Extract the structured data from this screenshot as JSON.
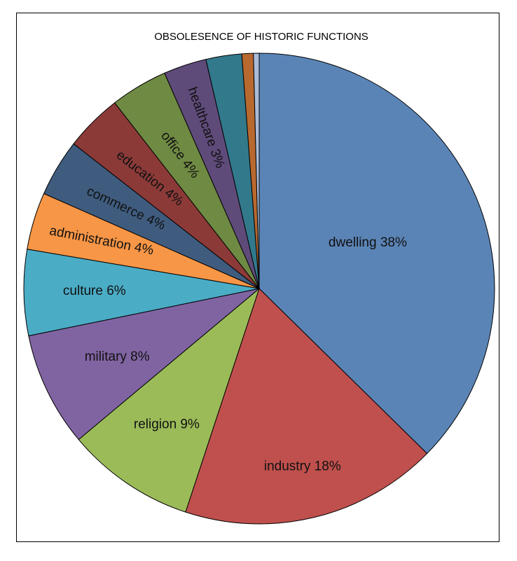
{
  "chart_data": {
    "type": "pie",
    "title": "OBSOLESENCE OF HISTORIC FUNCTIONS",
    "slices": [
      {
        "label": "dwelling 38%",
        "value": 38,
        "color": "#5b84b6"
      },
      {
        "label": "industry 18%",
        "value": 18,
        "color": "#c0504d"
      },
      {
        "label": "religion 9%",
        "value": 9,
        "color": "#9bbb59"
      },
      {
        "label": "military 8%",
        "value": 8,
        "color": "#8064a2"
      },
      {
        "label": "culture 6%",
        "value": 6,
        "color": "#4bacc6"
      },
      {
        "label": "administration 4%",
        "value": 4,
        "color": "#f79646"
      },
      {
        "label": "commerce 4%",
        "value": 4,
        "color": "#3f5c7f"
      },
      {
        "label": "education 4%",
        "value": 4,
        "color": "#8b3a38"
      },
      {
        "label": "office 4%",
        "value": 4,
        "color": "#6f8a43"
      },
      {
        "label": "healthcare 3%",
        "value": 3,
        "color": "#5f4b7a"
      },
      {
        "label": "",
        "value": 2.5,
        "color": "#32798c"
      },
      {
        "label": "",
        "value": 0.8,
        "color": "#b8692f"
      },
      {
        "label": "",
        "value": 0.4,
        "color": "#a9bbd8"
      }
    ]
  }
}
